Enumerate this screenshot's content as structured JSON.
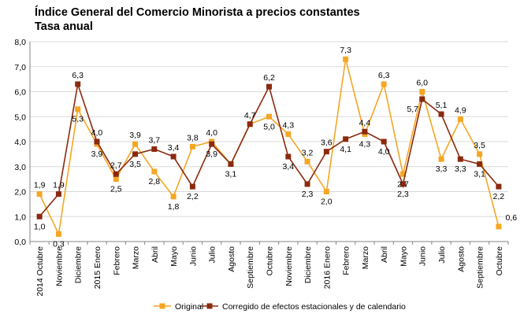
{
  "chart_data": {
    "type": "line",
    "title": "Índice General del Comercio Minorista a precios constantes",
    "subtitle": "Tasa anual",
    "categories": [
      "2014 Octubre",
      "Noviembre",
      "Diciembre",
      "2015 Enero",
      "Febrero",
      "Marzo",
      "Abril",
      "Mayo",
      "Junio",
      "Julio",
      "Agosto",
      "Septiembre",
      "Octubre",
      "Noviembre",
      "Diciembre",
      "2016 Enero",
      "Febrero",
      "Marzo",
      "Abril",
      "Mayo",
      "Junio",
      "Julio",
      "Agosto",
      "Septiembre",
      "Octubre"
    ],
    "y_ticks": [
      "0,0",
      "1,0",
      "2,0",
      "3,0",
      "4,0",
      "5,0",
      "6,0",
      "7,0",
      "8,0"
    ],
    "ylim": [
      0,
      8
    ],
    "grid": true,
    "legend_position": "bottom",
    "series": [
      {
        "name": "Original",
        "color": "#F5A623",
        "marker": "square",
        "values": [
          1.9,
          0.3,
          5.3,
          3.9,
          2.5,
          3.9,
          2.8,
          1.8,
          3.8,
          4.0,
          3.1,
          4.7,
          5.0,
          4.3,
          3.2,
          2.0,
          7.3,
          4.3,
          6.3,
          2.7,
          6.0,
          3.3,
          4.9,
          3.5,
          0.6
        ],
        "labels": [
          "1,9",
          "0,3",
          "5,3",
          "3,9",
          "2,5",
          "3,9",
          "2,8",
          "1,8",
          "3,8",
          "4,0",
          "",
          "4,7",
          "5,0",
          "4,3",
          "3,2",
          "2,0",
          "7,3",
          "4,3",
          "6,3",
          "2,7",
          "6,0",
          "3,3",
          "4,9",
          "3,5",
          "0,6"
        ]
      },
      {
        "name": "Corregido de efectos estacionales y de calendario",
        "color": "#8B2A0E",
        "marker": "square",
        "values": [
          1.0,
          1.9,
          6.3,
          4.0,
          2.7,
          3.5,
          3.7,
          3.4,
          2.2,
          3.9,
          3.1,
          4.7,
          6.2,
          3.4,
          2.3,
          3.6,
          4.1,
          4.4,
          4.0,
          2.3,
          5.7,
          5.1,
          3.3,
          3.1,
          2.2
        ],
        "labels": [
          "1,0",
          "1,9",
          "6,3",
          "4,0",
          "2,7",
          "3,5",
          "3,7",
          "3,4",
          "2,2",
          "3,9",
          "3,1",
          "",
          "6,2",
          "3,4",
          "2,3",
          "3,6",
          "4,1",
          "4,4",
          "4,0",
          "2,3",
          "5,7",
          "5,1",
          "3,3",
          "3,1",
          "2,2"
        ]
      }
    ]
  }
}
